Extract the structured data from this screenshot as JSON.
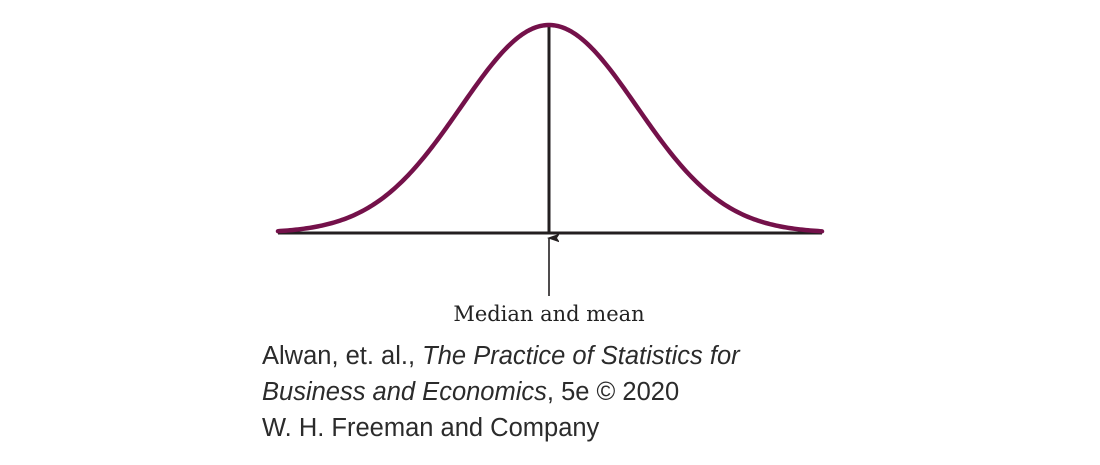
{
  "diagram": {
    "type": "symmetric-density-curve",
    "label": "Median and mean",
    "colors": {
      "curve": "#74114a",
      "axis": "#231f20",
      "text": "#2b2b2b"
    }
  },
  "credit": {
    "authors": "Alwan, et. al., ",
    "title": "The Practice of Statistics for Business and Economics",
    "edition": ", 5e © 2020",
    "publisher": "W. H. Freeman and Company",
    "title_line1": "The Practice of Statistics for",
    "title_line2": "Business and Economics"
  }
}
